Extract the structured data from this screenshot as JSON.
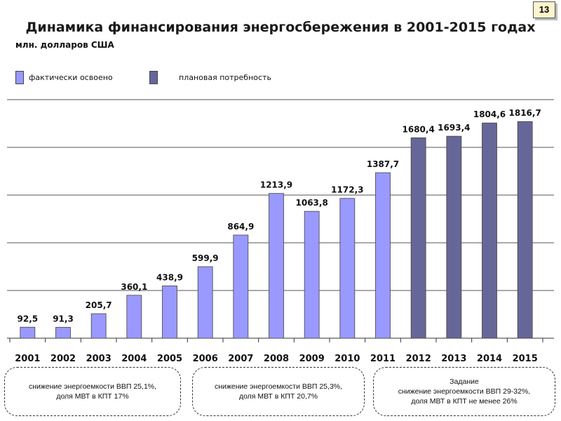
{
  "page": {
    "slide_number": "13"
  },
  "chart_data": {
    "type": "bar",
    "title": "Динамика финансирования энергосбережения в 2001-2015 годах",
    "ylabel": "млн. долларов США",
    "categories": [
      "2001",
      "2002",
      "2003",
      "2004",
      "2005",
      "2006",
      "2007",
      "2008",
      "2009",
      "2010",
      "2011",
      "2012",
      "2013",
      "2014",
      "2015"
    ],
    "values": [
      92.5,
      91.3,
      205.7,
      360.1,
      438.9,
      599.9,
      864.9,
      1213.9,
      1063.8,
      1172.3,
      1387.7,
      1680.4,
      1693.4,
      1804.6,
      1816.7
    ],
    "value_labels": [
      "92,5",
      "91,3",
      "205,7",
      "360,1",
      "438,9",
      "599,9",
      "864,9",
      "1213,9",
      "1063,8",
      "1172,3",
      "1387,7",
      "1680,4",
      "1693,4",
      "1804,6",
      "1816,7"
    ],
    "series_assignment": [
      "actual",
      "actual",
      "actual",
      "actual",
      "actual",
      "actual",
      "actual",
      "actual",
      "actual",
      "actual",
      "actual",
      "planned",
      "planned",
      "planned",
      "planned"
    ],
    "series": [
      {
        "key": "actual",
        "name": "фактически освоено",
        "color": "#9999ff"
      },
      {
        "key": "planned",
        "name": "плановая потребность",
        "color": "#666699"
      }
    ],
    "ylim": [
      0,
      2000
    ],
    "grid": true,
    "legend_position": "top-left"
  },
  "notes": [
    {
      "lines": [
        "снижение энергоемкости ВВП 25,1%,",
        "доля МВТ в КПТ 17%"
      ]
    },
    {
      "lines": [
        "снижение энергоемкости ВВП 25,3%,",
        "доля МВТ в КПТ 20,7%"
      ]
    },
    {
      "lines": [
        "Задание",
        "снижение энергоемкости ВВП 29-32%,",
        "доля МВТ в КПТ не менее 26%"
      ]
    }
  ]
}
